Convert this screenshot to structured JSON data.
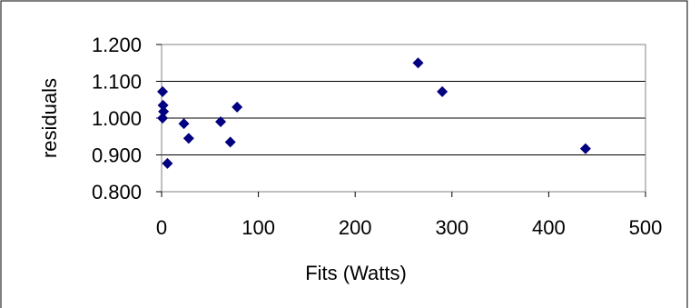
{
  "chart_data": {
    "type": "scatter",
    "title": "",
    "xlabel": "Fits (Watts)",
    "ylabel": "residuals",
    "xlim": [
      0,
      500
    ],
    "ylim": [
      0.8,
      1.2
    ],
    "x_ticks": [
      "0",
      "100",
      "200",
      "300",
      "400",
      "500"
    ],
    "y_ticks": [
      "0.800",
      "0.900",
      "1.000",
      "1.100",
      "1.200"
    ],
    "grid": "horizontal",
    "legend": "none",
    "marker": "diamond",
    "marker_color": "#000080",
    "points": [
      {
        "x": 1,
        "y": 1.072
      },
      {
        "x": 1.5,
        "y": 1.035
      },
      {
        "x": 2,
        "y": 1.018
      },
      {
        "x": 1,
        "y": 1.0
      },
      {
        "x": 6,
        "y": 0.877
      },
      {
        "x": 23,
        "y": 0.985
      },
      {
        "x": 28,
        "y": 0.945
      },
      {
        "x": 61,
        "y": 0.99
      },
      {
        "x": 71,
        "y": 0.935
      },
      {
        "x": 78,
        "y": 1.03
      },
      {
        "x": 265,
        "y": 1.15
      },
      {
        "x": 290,
        "y": 1.072
      },
      {
        "x": 438,
        "y": 0.917
      }
    ]
  }
}
